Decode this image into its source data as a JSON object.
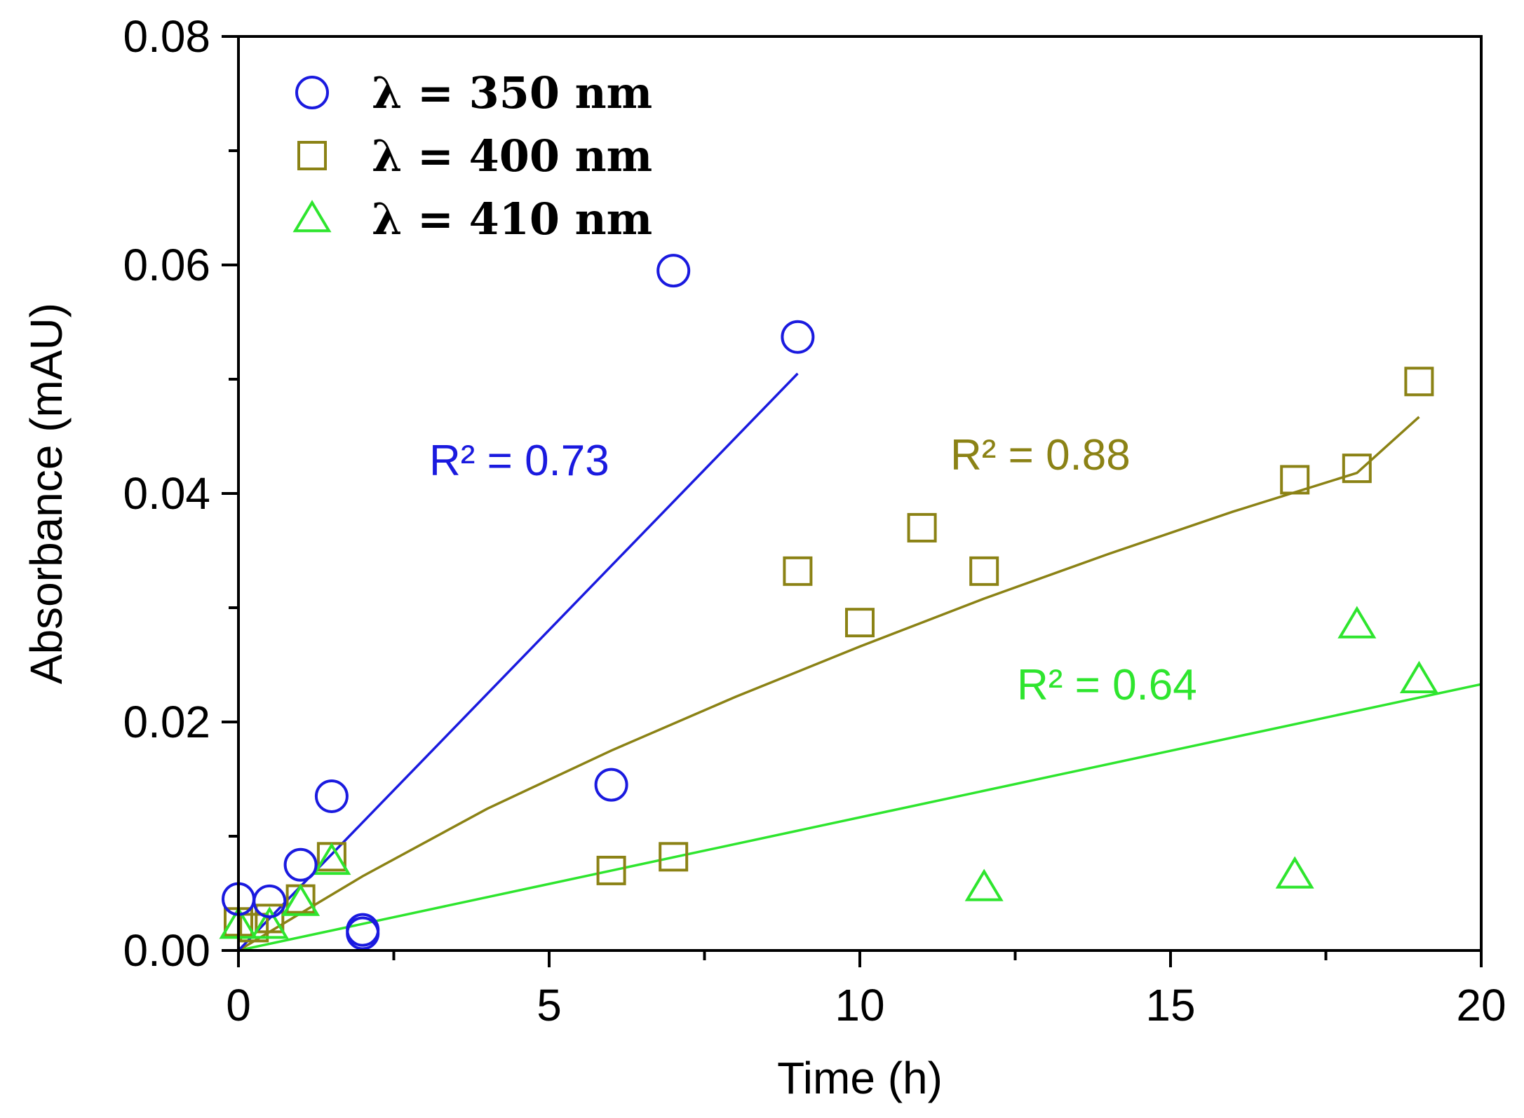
{
  "chart_data": {
    "type": "scatter",
    "title": "",
    "xlabel": "Time (h)",
    "ylabel": "Absorbance (mAU)",
    "xlim": [
      0,
      20
    ],
    "ylim": [
      0,
      0.08
    ],
    "x_ticks": [
      0,
      5,
      10,
      15,
      20
    ],
    "x_tick_labels": [
      "0",
      "5",
      "10",
      "15",
      "20"
    ],
    "y_ticks": [
      0,
      0.02,
      0.04,
      0.06,
      0.08
    ],
    "y_tick_labels": [
      "0.00",
      "0.02",
      "0.04",
      "0.06",
      "0.08"
    ],
    "grid": false,
    "legend_position": "top-left",
    "series": [
      {
        "name": "λ = 350 nm",
        "marker": "circle",
        "color": "#1a1adf",
        "x": [
          0,
          0.5,
          1,
          1.5,
          2,
          2,
          6,
          7,
          9
        ],
        "y": [
          0.0045,
          0.0043,
          0.0075,
          0.0135,
          0.0018,
          0.0015,
          0.0145,
          0.0595,
          0.0537
        ],
        "fit": {
          "x": [
            0,
            9
          ],
          "y": [
            0,
            0.0505
          ]
        },
        "r2_label": "R² = 0.73"
      },
      {
        "name": "λ = 400 nm",
        "marker": "square",
        "color": "#8b8215",
        "x": [
          0,
          0.25,
          0.5,
          1,
          1.5,
          6,
          7,
          9,
          10,
          11,
          12,
          17,
          18,
          19
        ],
        "y": [
          0.0025,
          0.002,
          0.0028,
          0.0045,
          0.0082,
          0.007,
          0.0082,
          0.0332,
          0.0287,
          0.037,
          0.0332,
          0.0412,
          0.0422,
          0.0498
        ],
        "fit": {
          "x": [
            0,
            2,
            4,
            6,
            8,
            10,
            12,
            14,
            16,
            18,
            19
          ],
          "y": [
            0,
            0.0065,
            0.0124,
            0.0175,
            0.0222,
            0.0266,
            0.0308,
            0.0347,
            0.0384,
            0.0418,
            0.0467
          ]
        },
        "r2_label": "R² = 0.88"
      },
      {
        "name": "λ = 410 nm",
        "marker": "triangle",
        "color": "#2ee52e",
        "x": [
          0,
          0.5,
          1,
          1.5,
          12,
          17,
          18,
          19
        ],
        "y": [
          0.0022,
          0.0022,
          0.0042,
          0.0078,
          0.0055,
          0.0066,
          0.0285,
          0.0237
        ],
        "fit": {
          "x": [
            0,
            20
          ],
          "y": [
            0,
            0.0233
          ]
        },
        "r2_label": "R² = 0.64"
      }
    ]
  }
}
